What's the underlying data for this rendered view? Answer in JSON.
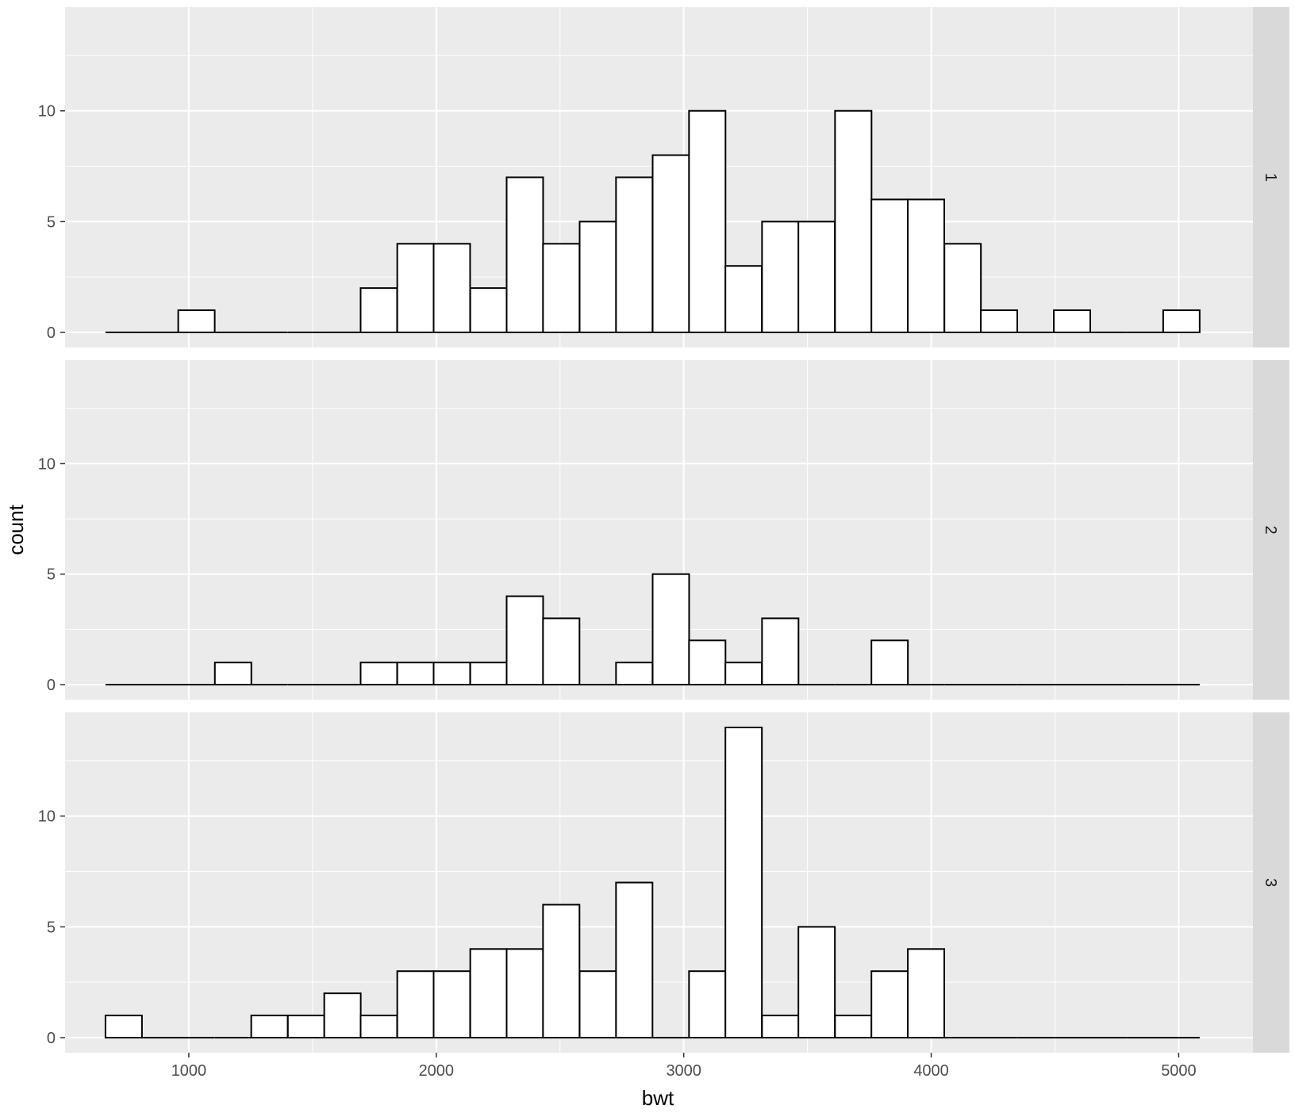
{
  "chart_data": {
    "type": "bar",
    "layout": "faceted histogram, facets stacked vertically with strip labels on the right",
    "xlabel": "bwt",
    "ylabel": "count",
    "xlim": [
      500,
      5300
    ],
    "ylim": [
      0,
      14
    ],
    "x_ticks": [
      "1000",
      "2000",
      "3000",
      "4000",
      "5000"
    ],
    "x_tick_values": [
      1000,
      2000,
      3000,
      4000,
      5000
    ],
    "y_ticks": [
      "0",
      "5",
      "10"
    ],
    "y_tick_values": [
      0,
      5,
      10
    ],
    "bins": {
      "centers": [
        737,
        884,
        1031,
        1179,
        1326,
        1474,
        1621,
        1768,
        1916,
        2063,
        2211,
        2358,
        2505,
        2653,
        2800,
        2948,
        3095,
        3242,
        3390,
        3537,
        3685,
        3832,
        3979,
        4127,
        4274,
        4422,
        4569,
        4716,
        4864,
        5011
      ],
      "width": 147.4
    },
    "grid": true,
    "colors": {
      "panel_background": "#ebebeb",
      "grid_line": "#ffffff",
      "strip_background": "#d9d9d9",
      "bar_fill": "#ffffff",
      "bar_outline": "#000000"
    },
    "facets": [
      {
        "label": "1",
        "counts": [
          0,
          0,
          1,
          0,
          0,
          0,
          0,
          2,
          4,
          4,
          2,
          7,
          4,
          5,
          7,
          8,
          10,
          3,
          5,
          5,
          10,
          6,
          6,
          4,
          1,
          0,
          1,
          0,
          0,
          1
        ]
      },
      {
        "label": "2",
        "counts": [
          0,
          0,
          0,
          1,
          0,
          0,
          0,
          1,
          1,
          1,
          1,
          4,
          3,
          0,
          1,
          5,
          2,
          1,
          3,
          0,
          0,
          2,
          0,
          0,
          0,
          0,
          0,
          0,
          0,
          0
        ]
      },
      {
        "label": "3",
        "counts": [
          1,
          0,
          0,
          0,
          1,
          1,
          2,
          1,
          3,
          3,
          4,
          4,
          6,
          3,
          7,
          0,
          3,
          14,
          1,
          5,
          1,
          3,
          4,
          0,
          0,
          0,
          0,
          0,
          0,
          0
        ]
      }
    ]
  }
}
